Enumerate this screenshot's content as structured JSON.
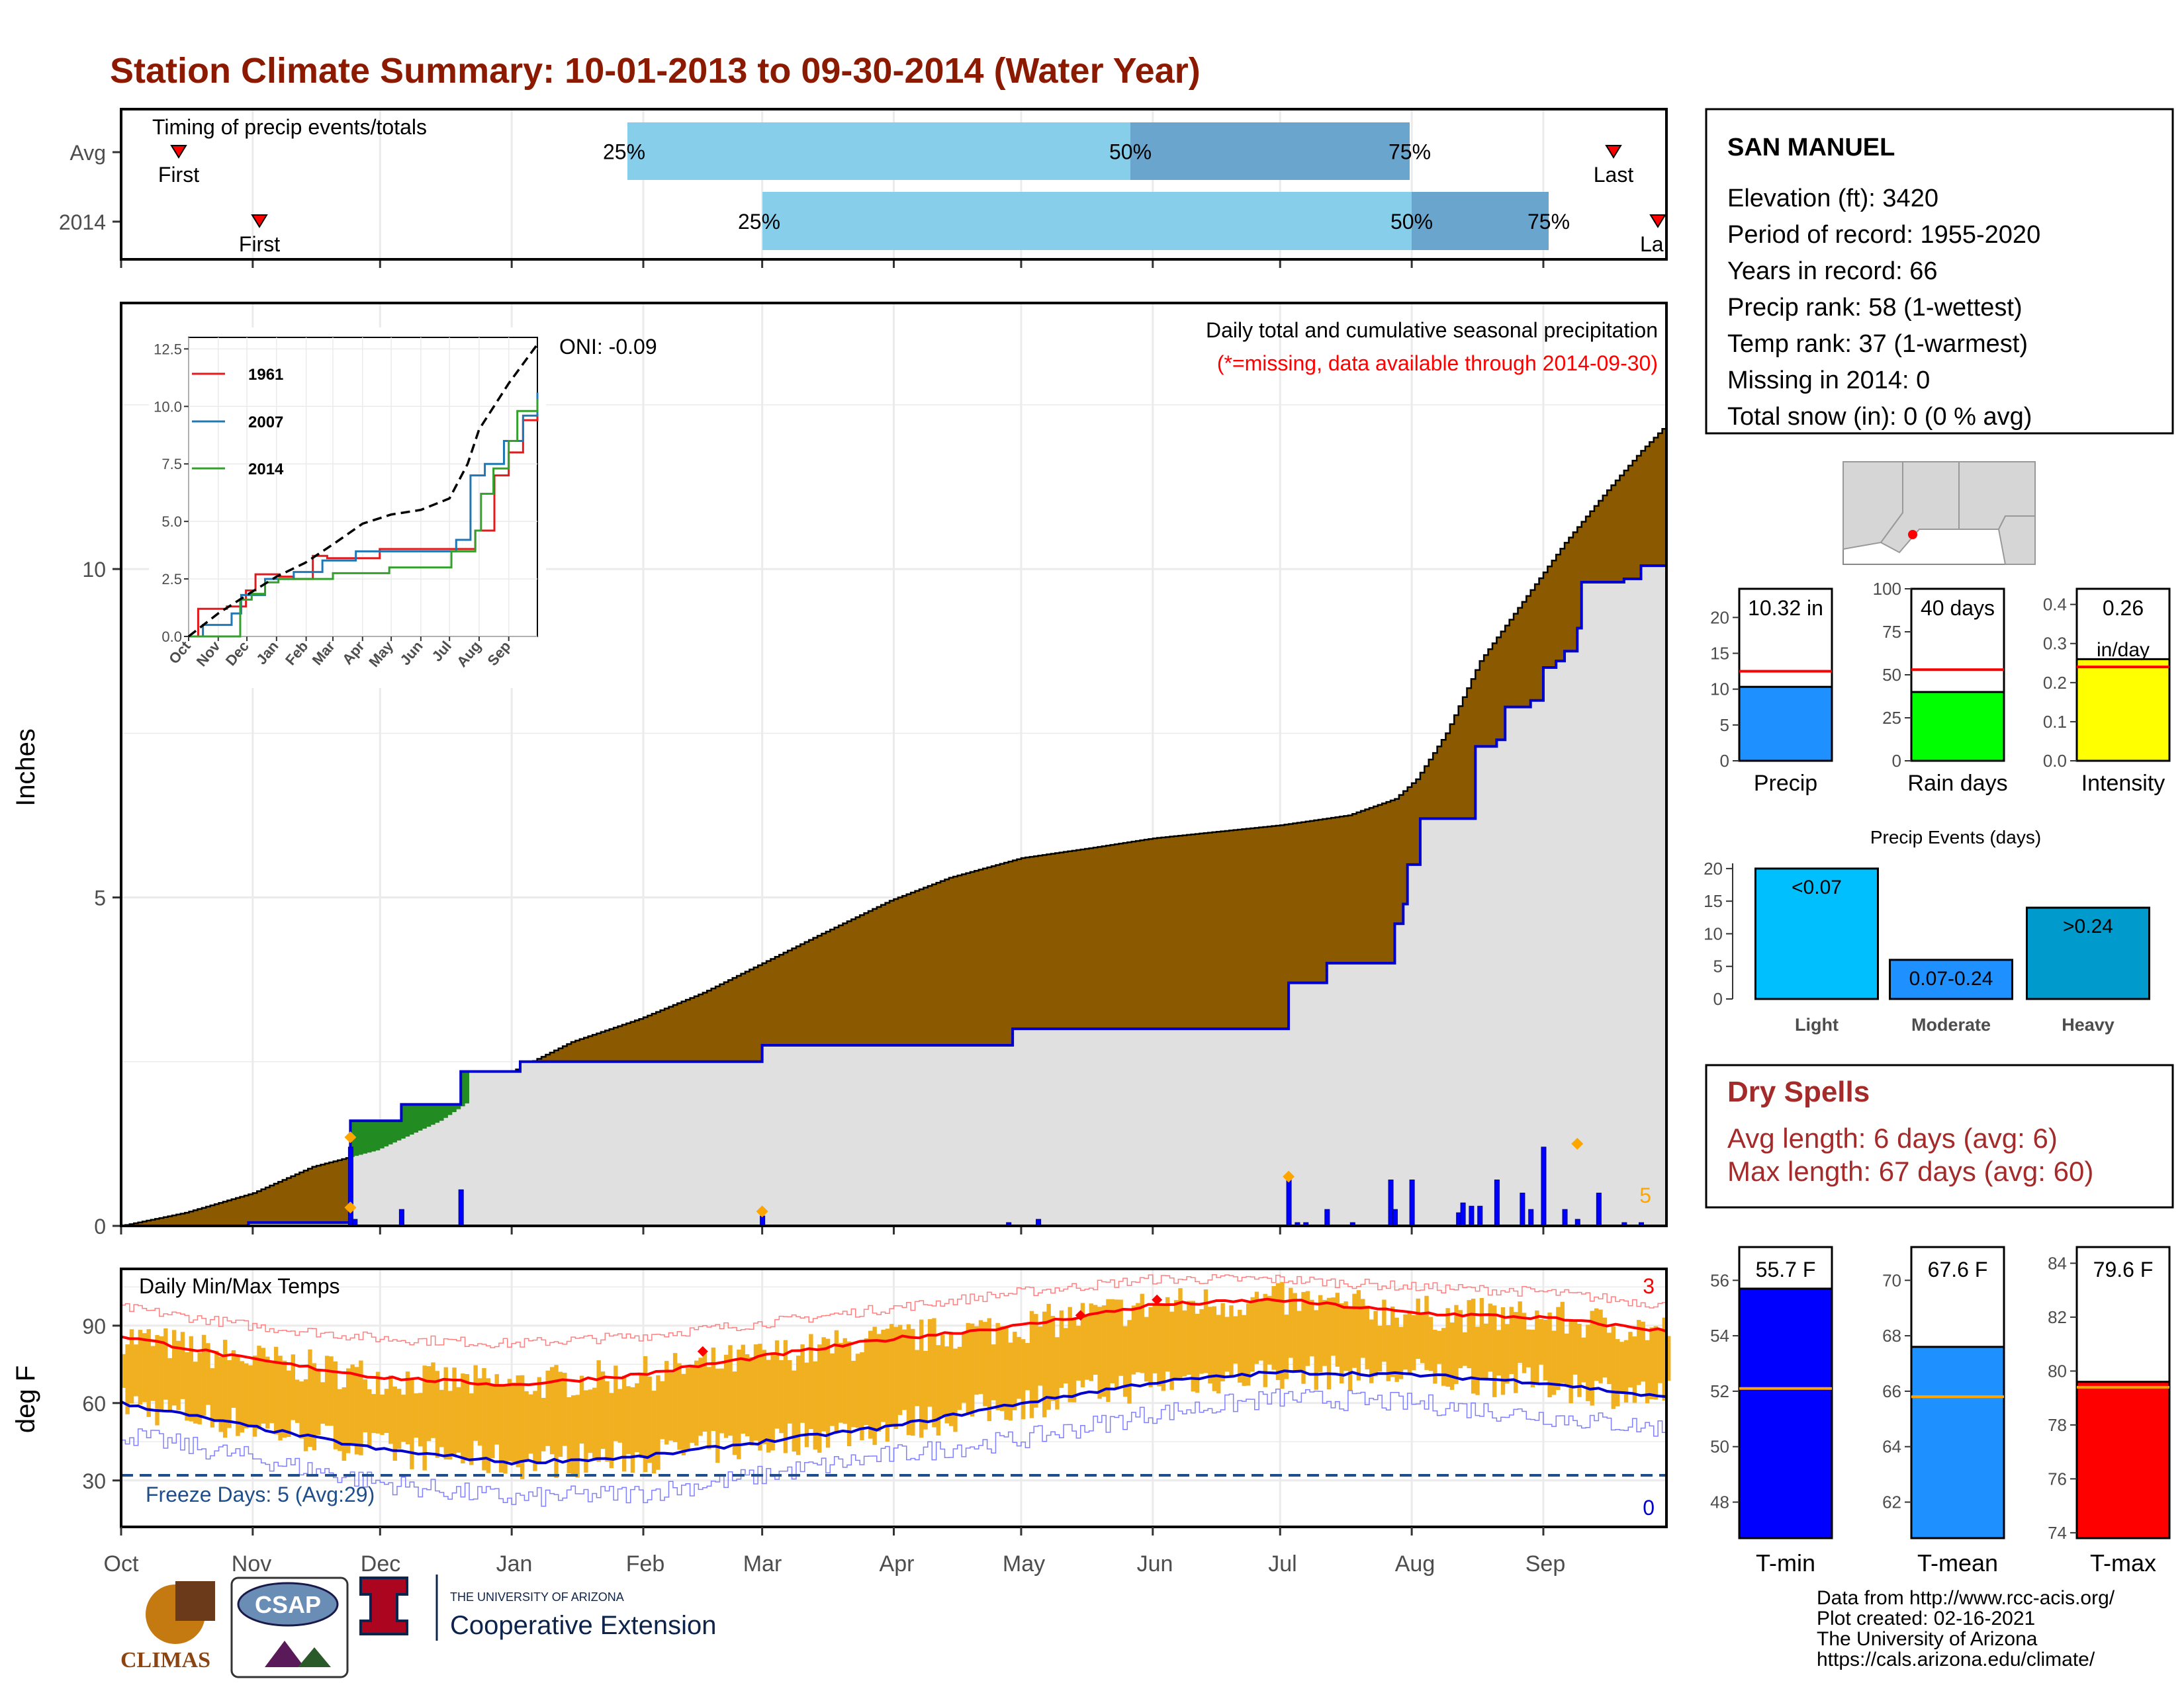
{
  "title": "Station Climate Summary: 10-01-2013 to 09-30-2014 (Water Year)",
  "timing": {
    "label": "Timing of precip events/totals",
    "rows": [
      {
        "name": "Avg",
        "first": "Oct 3",
        "last": "Sep 21",
        "p25": "Jan 30",
        "p50": "May 21",
        "p75": "Aug 1",
        "first_label": "First",
        "last_label": "Last"
      },
      {
        "name": "2014",
        "first": "Nov 3",
        "last": "Sep 29",
        "p25": "Mar 1",
        "p50": "Aug 1",
        "p75": "Sep 2",
        "first_label": "First",
        "last_label": "Last"
      }
    ],
    "pct_labels": [
      "25%",
      "50%",
      "75%"
    ]
  },
  "precip_panel": {
    "ylabel": "Inches",
    "yticks": [
      0,
      5,
      10
    ],
    "oni": "ONI: -0.09",
    "caption": "Daily total and cumulative seasonal precipitation",
    "missing_note": "(*=missing, data available through 2014-09-30)",
    "corner_count": "5",
    "avg_cumulative_end": 12.6,
    "obs_cumulative_end": 10.32,
    "avg_cumulative": [
      [
        0,
        0
      ],
      [
        15,
        0.2
      ],
      [
        31,
        0.5
      ],
      [
        45,
        0.9
      ],
      [
        60,
        1.15
      ],
      [
        75,
        1.6
      ],
      [
        92,
        2.35
      ],
      [
        106,
        2.8
      ],
      [
        122,
        3.15
      ],
      [
        137,
        3.55
      ],
      [
        151,
        4.0
      ],
      [
        165,
        4.45
      ],
      [
        181,
        4.95
      ],
      [
        195,
        5.3
      ],
      [
        212,
        5.6
      ],
      [
        228,
        5.75
      ],
      [
        243,
        5.9
      ],
      [
        258,
        6.0
      ],
      [
        273,
        6.1
      ],
      [
        289,
        6.25
      ],
      [
        300,
        6.5
      ],
      [
        305,
        6.8
      ],
      [
        312,
        7.5
      ],
      [
        320,
        8.6
      ],
      [
        330,
        9.5
      ],
      [
        340,
        10.4
      ],
      [
        350,
        11.2
      ],
      [
        358,
        11.8
      ],
      [
        364,
        12.2
      ]
    ],
    "obs_cumulative": [
      [
        0,
        0
      ],
      [
        30,
        0.05
      ],
      [
        53,
        0.05
      ],
      [
        54,
        1.6
      ],
      [
        65,
        1.6
      ],
      [
        66,
        1.85
      ],
      [
        79,
        1.85
      ],
      [
        80,
        2.35
      ],
      [
        94,
        2.5
      ],
      [
        150,
        2.5
      ],
      [
        151,
        2.75
      ],
      [
        209,
        2.75
      ],
      [
        210,
        3.0
      ],
      [
        274,
        3.0
      ],
      [
        275,
        3.7
      ],
      [
        284,
        4.0
      ],
      [
        299,
        4.0
      ],
      [
        300,
        4.6
      ],
      [
        302,
        4.9
      ],
      [
        303,
        5.5
      ],
      [
        306,
        6.2
      ],
      [
        318,
        6.2
      ],
      [
        319,
        7.3
      ],
      [
        324,
        7.4
      ],
      [
        326,
        7.9
      ],
      [
        332,
        8.0
      ],
      [
        335,
        8.5
      ],
      [
        338,
        8.6
      ],
      [
        340,
        8.75
      ],
      [
        343,
        9.1
      ],
      [
        344,
        9.8
      ],
      [
        354,
        9.85
      ],
      [
        358,
        10.05
      ],
      [
        364,
        10.32
      ]
    ],
    "daily_bars": [
      [
        54,
        1.2
      ],
      [
        55,
        0.1
      ],
      [
        66,
        0.25
      ],
      [
        80,
        0.55
      ],
      [
        151,
        0.15
      ],
      [
        209,
        0.05
      ],
      [
        216,
        0.1
      ],
      [
        275,
        0.7
      ],
      [
        277,
        0.05
      ],
      [
        279,
        0.05
      ],
      [
        284,
        0.25
      ],
      [
        290,
        0.05
      ],
      [
        299,
        0.7
      ],
      [
        300,
        0.25
      ],
      [
        304,
        0.7
      ],
      [
        315,
        0.2
      ],
      [
        316,
        0.35
      ],
      [
        318,
        0.3
      ],
      [
        320,
        0.3
      ],
      [
        324,
        0.7
      ],
      [
        330,
        0.5
      ],
      [
        332,
        0.25
      ],
      [
        335,
        1.2
      ],
      [
        340,
        0.25
      ],
      [
        343,
        0.1
      ],
      [
        348,
        0.5
      ],
      [
        354,
        0.05
      ],
      [
        358,
        0.05
      ]
    ],
    "missing_markers": [
      [
        54,
        1.35
      ],
      [
        54,
        0.28
      ],
      [
        151,
        0.22
      ],
      [
        275,
        0.75
      ],
      [
        343,
        1.25
      ]
    ]
  },
  "inset": {
    "yticks": [
      0.0,
      2.5,
      5.0,
      7.5,
      10.0,
      12.5
    ],
    "xticks": [
      "Oct",
      "Nov",
      "Dec",
      "Jan",
      "Feb",
      "Mar",
      "Apr",
      "May",
      "Jun",
      "Jul",
      "Aug",
      "Sep"
    ],
    "legend": [
      {
        "name": "1961",
        "color": "#e31a1c"
      },
      {
        "name": "2007",
        "color": "#1f78b4"
      },
      {
        "name": "2014",
        "color": "#33a02c"
      }
    ],
    "avg": [
      [
        0,
        0
      ],
      [
        31,
        1.0
      ],
      [
        61,
        1.8
      ],
      [
        92,
        2.6
      ],
      [
        122,
        3.2
      ],
      [
        151,
        4.0
      ],
      [
        182,
        4.9
      ],
      [
        212,
        5.3
      ],
      [
        243,
        5.5
      ],
      [
        273,
        6.0
      ],
      [
        292,
        7.5
      ],
      [
        304,
        9.0
      ],
      [
        335,
        11.0
      ],
      [
        365,
        12.7
      ]
    ],
    "s1961": [
      [
        0,
        0
      ],
      [
        10,
        1.2
      ],
      [
        40,
        1.3
      ],
      [
        60,
        2.0
      ],
      [
        70,
        2.7
      ],
      [
        95,
        2.6
      ],
      [
        110,
        2.5
      ],
      [
        130,
        3.5
      ],
      [
        145,
        3.4
      ],
      [
        200,
        3.8
      ],
      [
        275,
        3.8
      ],
      [
        300,
        4.6
      ],
      [
        320,
        7.0
      ],
      [
        335,
        8.0
      ],
      [
        350,
        9.4
      ],
      [
        365,
        9.8
      ]
    ],
    "s2007": [
      [
        0,
        0
      ],
      [
        15,
        0.5
      ],
      [
        45,
        1.0
      ],
      [
        55,
        1.8
      ],
      [
        80,
        2.5
      ],
      [
        110,
        2.8
      ],
      [
        140,
        3.3
      ],
      [
        175,
        3.7
      ],
      [
        255,
        3.7
      ],
      [
        280,
        4.2
      ],
      [
        295,
        7.0
      ],
      [
        310,
        7.5
      ],
      [
        330,
        8.5
      ],
      [
        350,
        9.6
      ],
      [
        365,
        10.6
      ]
    ],
    "s2014": [
      [
        0,
        0
      ],
      [
        53,
        0
      ],
      [
        54,
        1.6
      ],
      [
        66,
        1.85
      ],
      [
        80,
        2.35
      ],
      [
        94,
        2.5
      ],
      [
        151,
        2.75
      ],
      [
        210,
        3.0
      ],
      [
        275,
        3.7
      ],
      [
        300,
        4.6
      ],
      [
        306,
        6.2
      ],
      [
        319,
        7.3
      ],
      [
        335,
        8.5
      ],
      [
        344,
        9.8
      ],
      [
        365,
        10.32
      ]
    ]
  },
  "temp_panel": {
    "ylabel": "deg F",
    "yticks": [
      30,
      60,
      90
    ],
    "label": "Daily Min/Max Temps",
    "freeze": "Freeze Days: 5 (Avg:29)",
    "count_hot": "3",
    "count_cold": "0",
    "freeze_line": 32,
    "avg_max": [
      [
        0,
        86
      ],
      [
        30,
        77
      ],
      [
        61,
        70
      ],
      [
        92,
        67
      ],
      [
        122,
        71
      ],
      [
        151,
        78
      ],
      [
        182,
        85
      ],
      [
        212,
        90
      ],
      [
        243,
        98
      ],
      [
        273,
        100
      ],
      [
        304,
        95
      ],
      [
        335,
        93
      ],
      [
        364,
        88
      ]
    ],
    "avg_min": [
      [
        0,
        60
      ],
      [
        30,
        51
      ],
      [
        61,
        42
      ],
      [
        92,
        37
      ],
      [
        122,
        39
      ],
      [
        151,
        45
      ],
      [
        182,
        51
      ],
      [
        212,
        60
      ],
      [
        243,
        68
      ],
      [
        273,
        72
      ],
      [
        304,
        71
      ],
      [
        335,
        68
      ],
      [
        364,
        62
      ]
    ],
    "rec_max": [
      [
        0,
        97
      ],
      [
        30,
        90
      ],
      [
        61,
        85
      ],
      [
        92,
        83
      ],
      [
        122,
        86
      ],
      [
        151,
        91
      ],
      [
        182,
        97
      ],
      [
        212,
        103
      ],
      [
        243,
        108
      ],
      [
        273,
        108
      ],
      [
        304,
        105
      ],
      [
        335,
        103
      ],
      [
        364,
        98
      ]
    ],
    "rec_min": [
      [
        0,
        48
      ],
      [
        30,
        39
      ],
      [
        61,
        29
      ],
      [
        92,
        23
      ],
      [
        122,
        25
      ],
      [
        151,
        32
      ],
      [
        182,
        40
      ],
      [
        212,
        46
      ],
      [
        243,
        56
      ],
      [
        273,
        62
      ],
      [
        304,
        60
      ],
      [
        335,
        55
      ],
      [
        364,
        50
      ]
    ],
    "hot_markers": [
      [
        137,
        80
      ],
      [
        226,
        94
      ],
      [
        244,
        100
      ]
    ]
  },
  "x_months": [
    "Oct",
    "Nov",
    "Dec",
    "Jan",
    "Feb",
    "Mar",
    "Apr",
    "May",
    "Jun",
    "Jul",
    "Aug",
    "Sep"
  ],
  "info": {
    "station": "SAN MANUEL",
    "lines": [
      "Elevation (ft): 3420",
      "Period of record: 1955-2020",
      "Years in record: 66",
      "Precip rank: 58 (1-wettest)",
      "Temp rank: 37 (1-warmest)",
      "Missing in 2014: 0",
      "Total snow (in): 0 (0 % avg)"
    ]
  },
  "mini_bars": [
    {
      "label": "Precip",
      "value": 10.32,
      "avg": 12.5,
      "text": "10.32 in",
      "color": "#1e90ff",
      "yticks": [
        0,
        5,
        10,
        15,
        20
      ],
      "ymax": 24
    },
    {
      "label": "Rain days",
      "value": 40,
      "avg": 53,
      "text": "40 days",
      "color": "#00ff00",
      "yticks": [
        0,
        25,
        50,
        75,
        100
      ],
      "ymax": 100
    },
    {
      "label": "Intensity",
      "value": 0.26,
      "avg": 0.24,
      "text": "0.26",
      "text2": "in/day",
      "color": "#ffff00",
      "yticks": [
        "0.0",
        "0.1",
        "0.2",
        "0.3",
        "0.4"
      ],
      "ymax": 0.44
    }
  ],
  "events": {
    "title": "Precip Events (days)",
    "yticks": [
      0,
      5,
      10,
      15,
      20
    ],
    "bars": [
      {
        "cat": "Light",
        "value": 20,
        "text": "<0.07",
        "color": "#00bfff"
      },
      {
        "cat": "Moderate",
        "value": 6,
        "text": "0.07-0.24",
        "color": "#1e90ff"
      },
      {
        "cat": "Heavy",
        "value": 14,
        "text": ">0.24",
        "color": "#009acd"
      }
    ]
  },
  "dry_spells": {
    "title": "Dry Spells",
    "avg": "Avg length: 6 days (avg: 6)",
    "max": "Max length: 67 days (avg: 60)"
  },
  "temp_bars": [
    {
      "label": "T-min",
      "value": 55.7,
      "avg": 52.1,
      "text": "55.7 F",
      "color": "#0000ff",
      "yticks": [
        48,
        50,
        52,
        54,
        56
      ],
      "ymin": 46.7,
      "ymax": 57.2
    },
    {
      "label": "T-mean",
      "value": 67.6,
      "avg": 65.8,
      "text": "67.6 F",
      "color": "#1e90ff",
      "yticks": [
        62,
        64,
        66,
        68,
        70
      ],
      "ymin": 60.7,
      "ymax": 71.2
    },
    {
      "label": "T-max",
      "value": 79.6,
      "avg": 79.4,
      "text": "79.6 F",
      "color": "#ff0000",
      "yticks": [
        74,
        76,
        78,
        80,
        82,
        84
      ],
      "ymin": 73.8,
      "ymax": 84.6
    }
  ],
  "footer": {
    "source": "Data from http://www.rcc-acis.org/",
    "created": "Plot created: 02-16-2021",
    "org": "The University of Arizona",
    "url": "https://cals.arizona.edu/climate/",
    "logo_climas": "CLIMAS",
    "logo_csap": "CSAP",
    "ua_small": "THE UNIVERSITY OF ARIZONA",
    "ua_big": "Cooperative Extension"
  },
  "colors": {
    "title": "#8b1a00",
    "avg_fill": "#8b5a00",
    "obs_fill": "#e0e0e0",
    "obs_line": "#0000cd",
    "temp_bars": "#f0b020",
    "timing_light": "#87ceeb",
    "timing_dark": "#6aa5cd",
    "dry_spells": "#a52a2a"
  }
}
